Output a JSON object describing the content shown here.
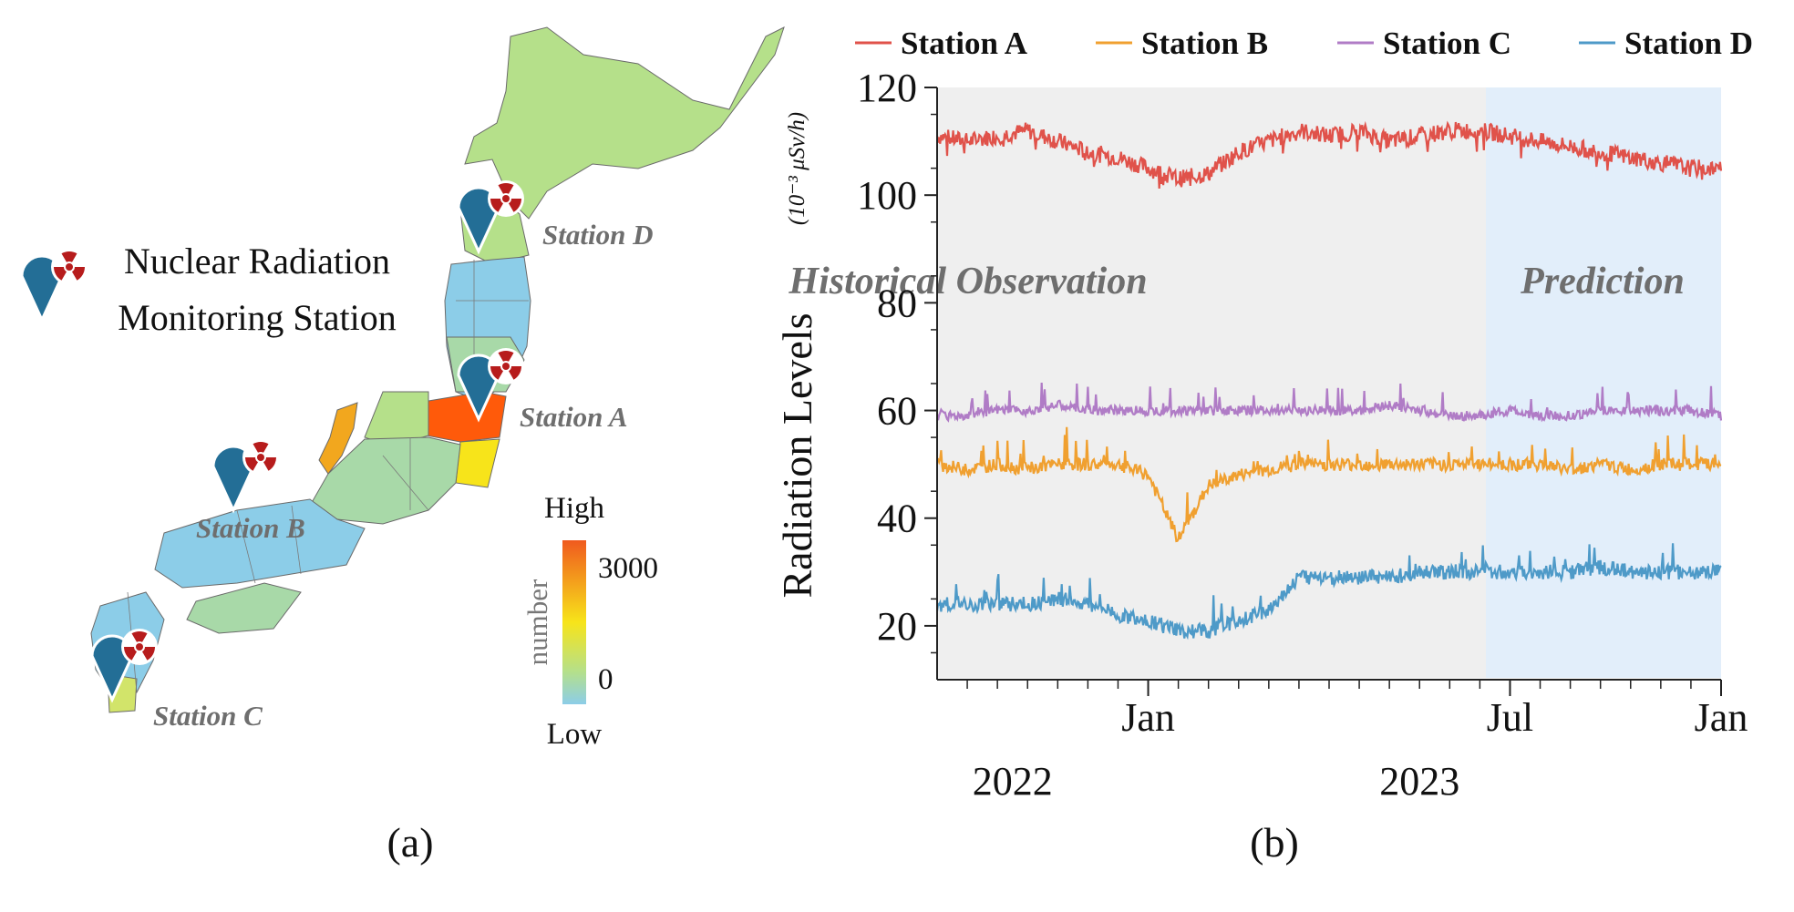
{
  "map_panel": {
    "caption": "(a)",
    "legend_text_line1": "Nuclear Radiation",
    "legend_text_line2": "Monitoring Station",
    "stations": [
      {
        "label": "Station A"
      },
      {
        "label": "Station B"
      },
      {
        "label": "Station C"
      },
      {
        "label": "Station D"
      }
    ],
    "colorbar": {
      "title": "number",
      "high_label": "High",
      "low_label": "Low",
      "tick_max": "3000",
      "tick_min": "0",
      "colors": [
        "#f05a1e",
        "#f7e41a",
        "#b5e08a",
        "#8ccde8"
      ]
    },
    "region_colors": {
      "north": "#b5e08a",
      "tohoku": "#8ccde8",
      "fukushima": "#ff5a0a",
      "ibaraki": "#f7e41a",
      "ishikawa": "#f2a71e",
      "central": "#a8d9a8",
      "west": "#8ccde8",
      "kyushu_south": "#d2e46a",
      "pin": "#236e96",
      "radiation_red": "#b71c1c"
    }
  },
  "chart_panel": {
    "caption": "(b)",
    "chart_data": {
      "type": "line",
      "title": "",
      "ylabel": "Radiation Levels",
      "yunit": "(10⁻³ μSv/h)",
      "ylim": [
        10,
        120
      ],
      "yticks": [
        "20",
        "40",
        "60",
        "80",
        "100",
        "120"
      ],
      "x_range_months": [
        0,
        26
      ],
      "x_month_ticks": [
        "Jan",
        "Jul",
        "Jan"
      ],
      "x_year_labels": [
        "2022",
        "2023"
      ],
      "regions": [
        {
          "label": "Historical Observation",
          "from_month": 0,
          "to_month": 18.2
        },
        {
          "label": "Prediction",
          "from_month": 18.2,
          "to_month": 26
        }
      ],
      "series": [
        {
          "name": "Station A",
          "color": "#e0524a",
          "months": [
            0,
            1,
            2,
            3,
            4,
            5,
            6,
            7,
            8,
            9,
            10,
            11,
            12,
            13,
            14,
            15,
            16,
            17,
            18,
            19,
            20,
            21,
            22,
            23,
            24,
            25,
            26
          ],
          "values": [
            111,
            110,
            111,
            112,
            110,
            108,
            107,
            105,
            103,
            104,
            108,
            110,
            112,
            111,
            112,
            110,
            111,
            112,
            112,
            111,
            110,
            109,
            108,
            107,
            106,
            105,
            105
          ]
        },
        {
          "name": "Station B",
          "color": "#f0a030",
          "months": [
            0,
            1,
            2,
            3,
            4,
            5,
            6,
            7,
            8,
            9,
            10,
            11,
            12,
            13,
            14,
            15,
            16,
            17,
            18,
            19,
            20,
            21,
            22,
            23,
            24,
            25,
            26
          ],
          "values": [
            50,
            49,
            50,
            49,
            50,
            50,
            50,
            48,
            36,
            46,
            48,
            49,
            50,
            50,
            50,
            50,
            50,
            50,
            50,
            50,
            50,
            49,
            50,
            49,
            50,
            50,
            50
          ]
        },
        {
          "name": "Station C",
          "color": "#b07cc6",
          "months": [
            0,
            1,
            2,
            3,
            4,
            5,
            6,
            7,
            8,
            9,
            10,
            11,
            12,
            13,
            14,
            15,
            16,
            17,
            18,
            19,
            20,
            21,
            22,
            23,
            24,
            25,
            26
          ],
          "values": [
            59,
            59,
            60,
            60,
            61,
            60,
            60,
            60,
            60,
            60,
            60,
            60,
            60,
            60,
            60,
            61,
            60,
            59,
            59,
            60,
            59,
            59,
            60,
            60,
            60,
            60,
            59
          ]
        },
        {
          "name": "Station D",
          "color": "#4e9ac8",
          "months": [
            0,
            1,
            2,
            3,
            4,
            5,
            6,
            7,
            8,
            9,
            10,
            11,
            12,
            13,
            14,
            15,
            16,
            17,
            18,
            19,
            20,
            21,
            22,
            23,
            24,
            25,
            26
          ],
          "values": [
            24,
            24,
            24,
            24,
            25,
            24,
            22,
            21,
            19,
            19,
            21,
            23,
            29,
            29,
            29,
            29,
            30,
            30,
            30,
            30,
            30,
            30,
            31,
            30,
            30,
            30,
            30
          ]
        }
      ],
      "legend_position": "top"
    }
  }
}
